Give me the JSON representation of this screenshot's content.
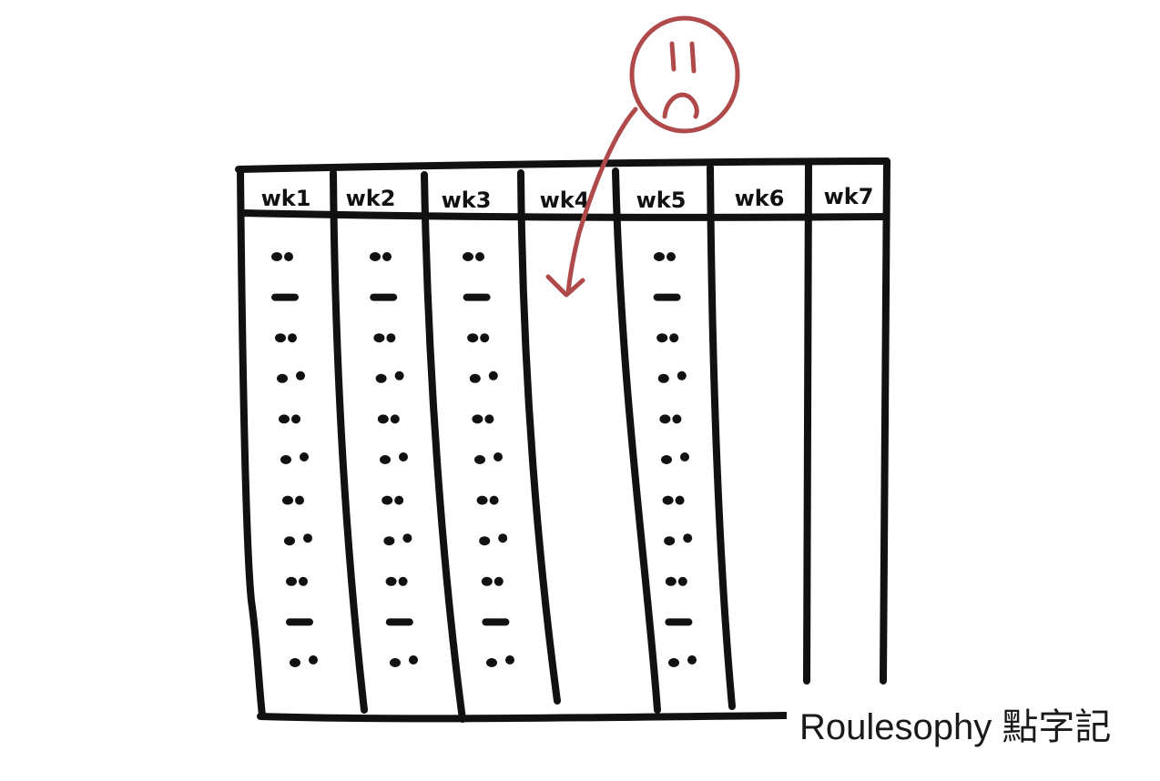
{
  "columns": [
    {
      "label": "wk1",
      "record_count": 11
    },
    {
      "label": "wk2",
      "record_count": 11
    },
    {
      "label": "wk3",
      "record_count": 11
    },
    {
      "label": "wk4",
      "record_count": 0
    },
    {
      "label": "wk5",
      "record_count": 11
    },
    {
      "label": "wk6",
      "record_count": 0
    },
    {
      "label": "wk7",
      "record_count": 0
    }
  ],
  "annotation": {
    "face": "sad-face",
    "arrow_target_column": "wk4"
  },
  "colors": {
    "ink": "#111111",
    "annotation": "#b04a4a",
    "background": "#ffffff"
  },
  "watermark": {
    "text": "Roulesophy 點字記"
  }
}
